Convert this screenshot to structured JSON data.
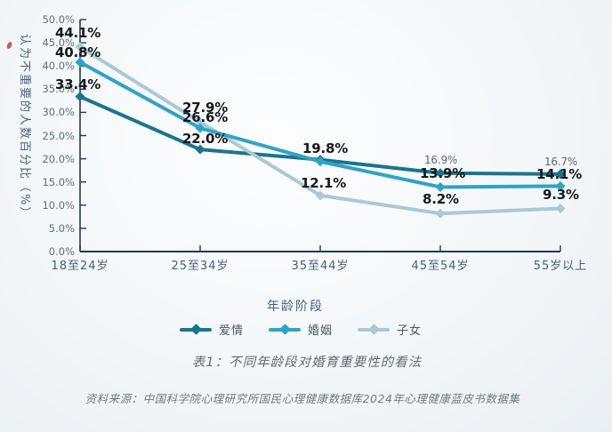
{
  "source_note": "资料来源：中国科学院心理研究所国民心理健康数据库2024年心理健康蓝皮书数据集",
  "colors": {
    "axis": "#1d3a57",
    "love": "#19758f",
    "marriage": "#2fa3c7",
    "children": "#abc8d5"
  },
  "chart_data": {
    "type": "line",
    "title": "表1：不同年龄段对婚育重要性的看法",
    "xlabel": "年龄阶段",
    "ylabel": "认为不重要的人数百分比（%）",
    "categories": [
      "18至24岁",
      "25至34岁",
      "35至44岁",
      "45至54岁",
      "55岁以上"
    ],
    "ylim": [
      0,
      50
    ],
    "y_ticks": [
      "0.0%",
      "5.0%",
      "10.0%",
      "15.0%",
      "20.0%",
      "25.0%",
      "30.0%",
      "35.0%",
      "40.0%",
      "45.0%",
      "50.0%"
    ],
    "grid": false,
    "legend_position": "bottom",
    "marker": "diamond",
    "series": [
      {
        "name": "爱情",
        "color": "#19758f",
        "values": [
          33.4,
          22.0,
          19.8,
          16.9,
          16.7
        ],
        "labels": [
          "33.4%",
          "22.0%",
          "19.8%",
          "16.9%",
          "16.7%"
        ]
      },
      {
        "name": "婚姻",
        "color": "#2fa3c7",
        "values": [
          40.8,
          26.6,
          19.4,
          13.9,
          14.1
        ],
        "labels": [
          "40.8%",
          "26.6%",
          "",
          "13.9%",
          "14.1%"
        ]
      },
      {
        "name": "子女",
        "color": "#abc8d5",
        "values": [
          44.1,
          27.9,
          12.1,
          8.2,
          9.3
        ],
        "labels": [
          "44.1%",
          "27.9%",
          "12.1%",
          "8.2%",
          "9.3%"
        ]
      }
    ]
  }
}
